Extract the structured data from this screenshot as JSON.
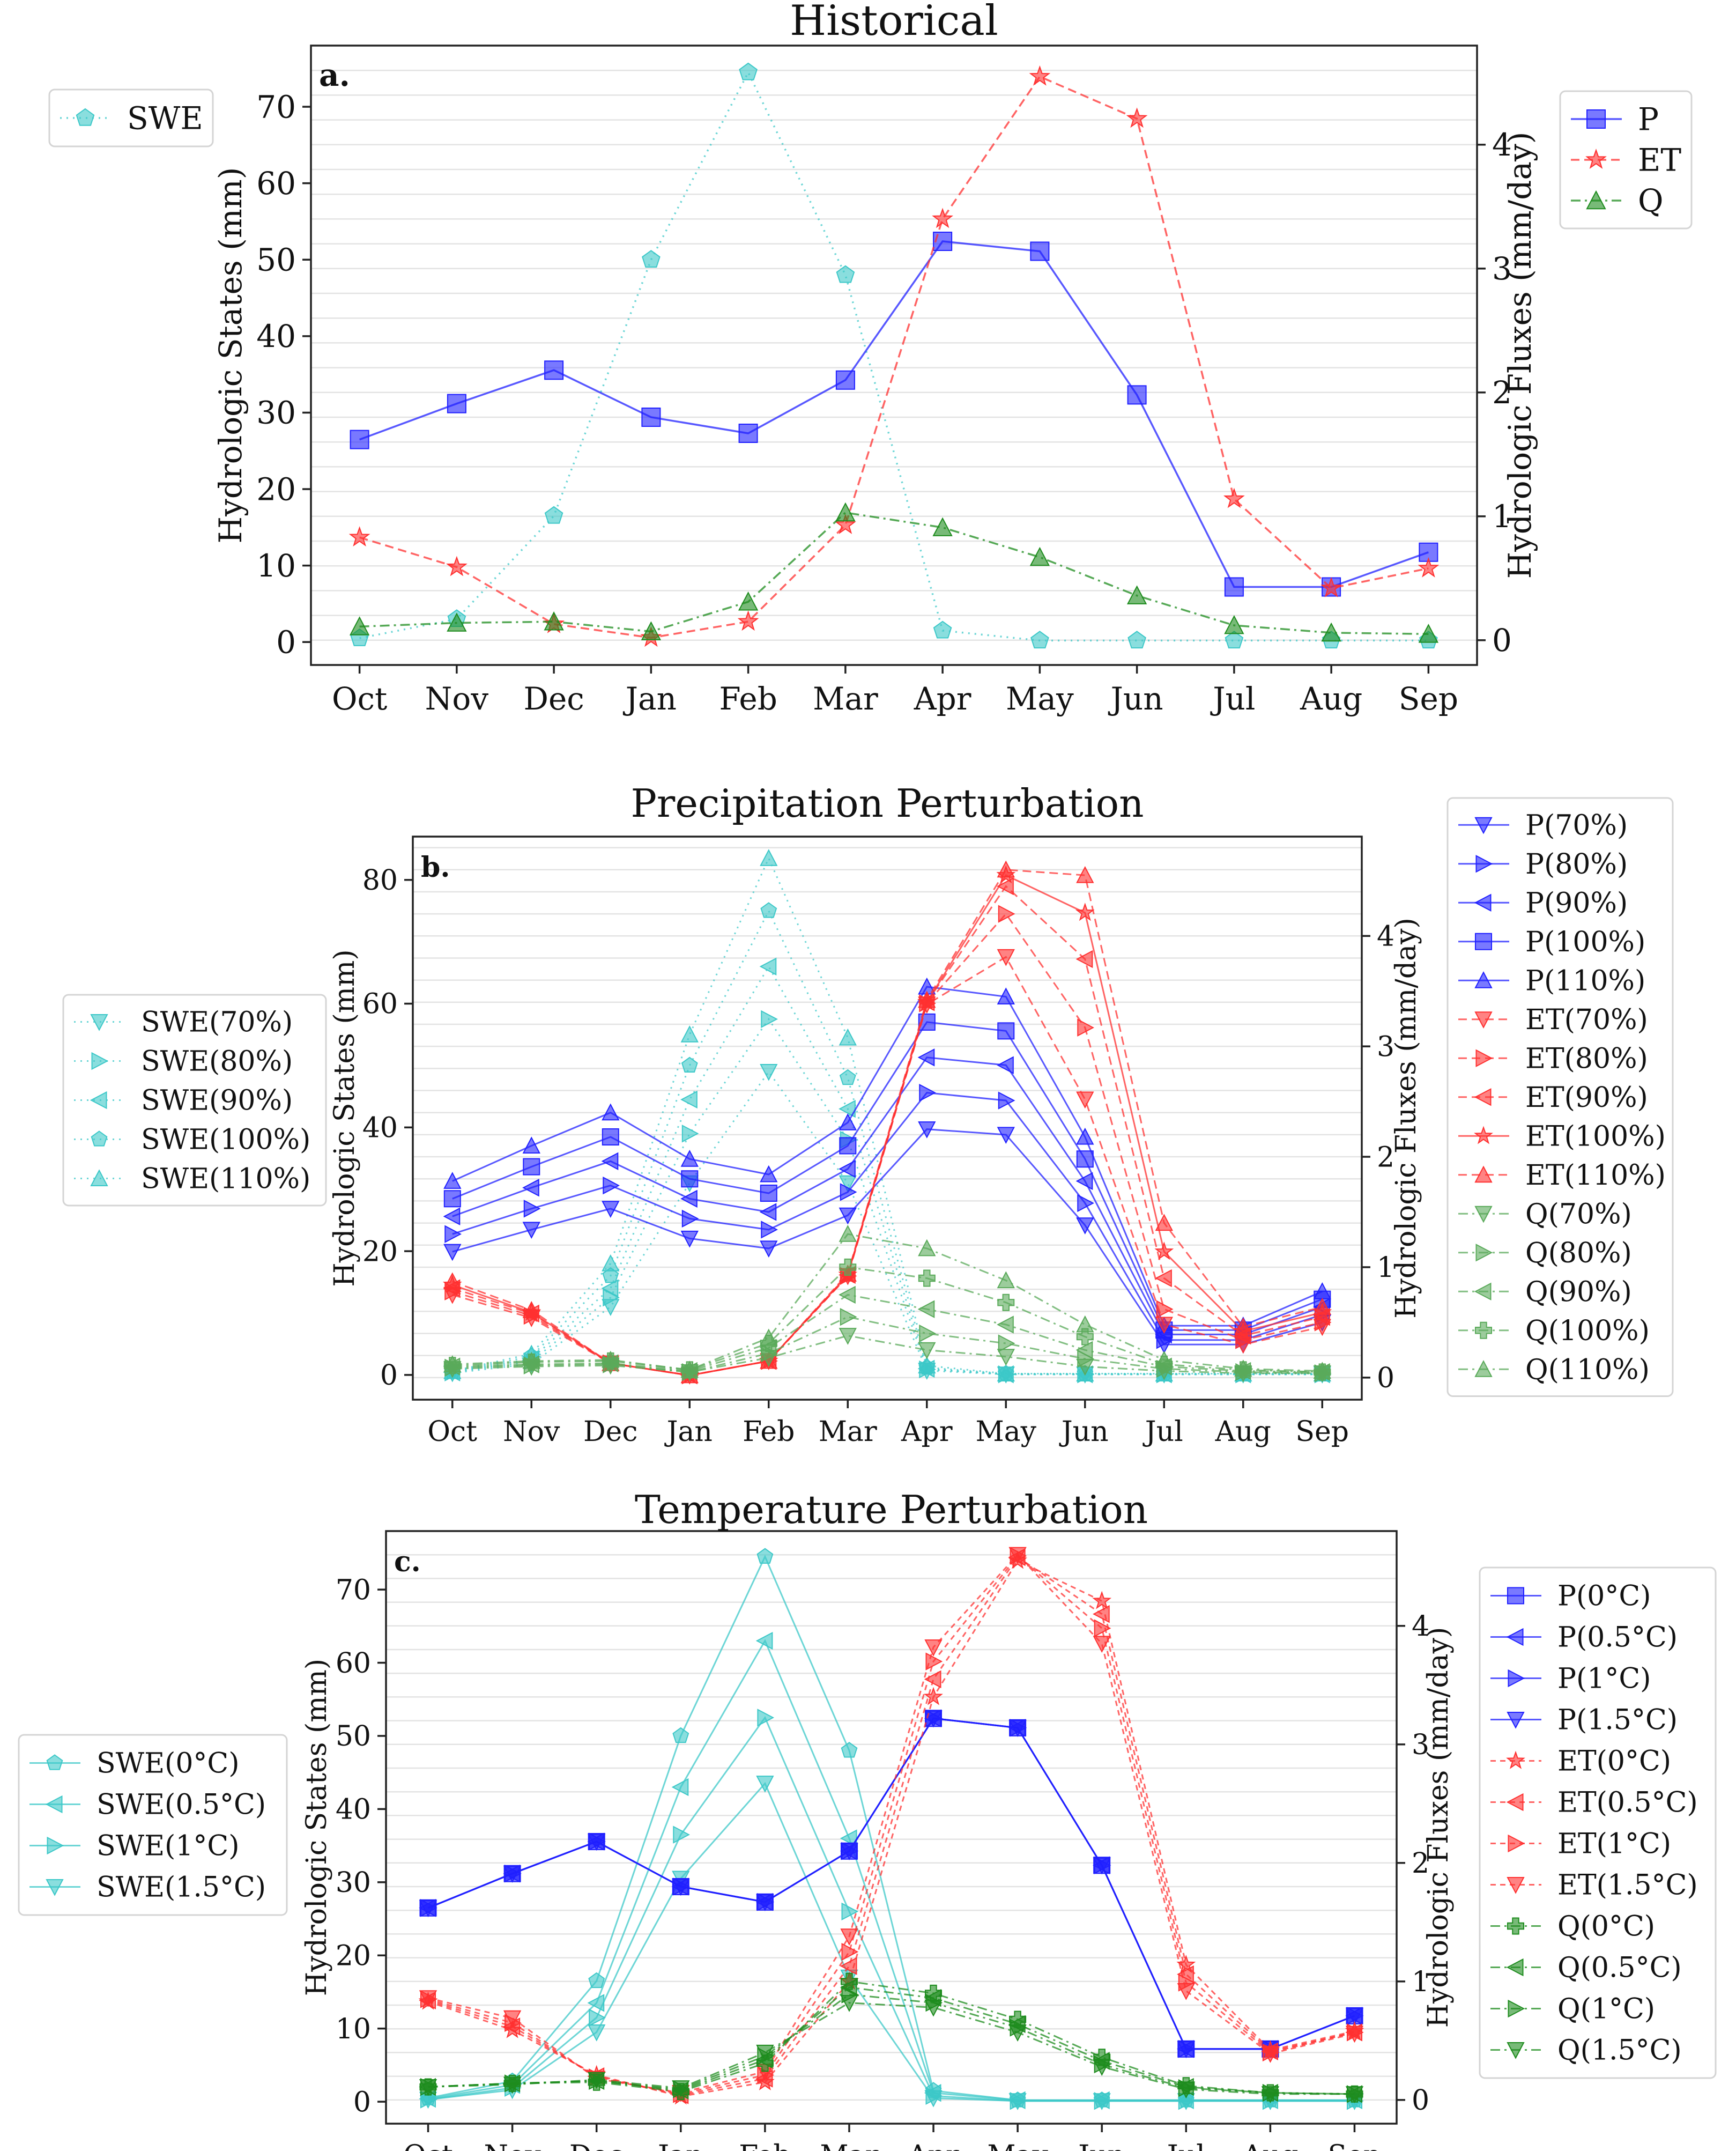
{
  "months": [
    "Oct",
    "Nov",
    "Dec",
    "Jan",
    "Feb",
    "Mar",
    "Apr",
    "May",
    "Jun",
    "Jul",
    "Aug",
    "Sep"
  ],
  "colors": {
    "swe": "#3cc8c8",
    "p": "#2020ff",
    "et": "#ff3030",
    "q": "#1e8c1e",
    "q_light": "#5aaa5a"
  },
  "chart_data": [
    {
      "type": "line",
      "panel": "a.",
      "title": "Historical",
      "ylabel_left": "Hydrologic States (mm)",
      "ylabel_right": "Hydrologic Fluxes (mm/day)",
      "ylim_left": [
        -3,
        78
      ],
      "ylim_right": [
        -0.2,
        4.8
      ],
      "yticks_left": [
        0,
        10,
        20,
        30,
        40,
        50,
        60,
        70
      ],
      "yticks_right": [
        0,
        1,
        2,
        3,
        4
      ],
      "grid": true,
      "legend_left": "outside-left",
      "legend_right": "outside-right",
      "series": [
        {
          "name": "SWE",
          "axis": "left",
          "color": "#3cc8c8",
          "dash": "3,9",
          "marker": "pentagon",
          "values": [
            0.5,
            3,
            16.5,
            50,
            74.5,
            48,
            1.5,
            0.2,
            0.2,
            0.2,
            0.2,
            0.2
          ]
        },
        {
          "name": "P",
          "axis": "right",
          "color": "#2020ff",
          "dash": "",
          "marker": "square",
          "values": [
            1.62,
            1.91,
            2.18,
            1.8,
            1.67,
            2.1,
            3.22,
            3.14,
            1.98,
            0.43,
            0.43,
            0.71
          ]
        },
        {
          "name": "ET",
          "axis": "right",
          "color": "#ff3030",
          "dash": "16,9",
          "marker": "star",
          "values": [
            0.83,
            0.59,
            0.13,
            0.02,
            0.15,
            0.93,
            3.4,
            4.55,
            4.21,
            1.14,
            0.42,
            0.58
          ]
        },
        {
          "name": "Q",
          "axis": "right",
          "color": "#1e8c1e",
          "dash": "18,8,4,8",
          "marker": "triangle-up",
          "values": [
            0.11,
            0.14,
            0.15,
            0.07,
            0.31,
            1.03,
            0.91,
            0.67,
            0.36,
            0.12,
            0.06,
            0.05
          ]
        }
      ]
    },
    {
      "type": "line",
      "panel": "b.",
      "title": "Precipitation Perturbation",
      "ylabel_left": "Hydrologic States (mm)",
      "ylabel_right": "Hydrologic Fluxes (mm/day)",
      "ylim_left": [
        -4,
        87
      ],
      "ylim_right": [
        -0.2,
        4.9
      ],
      "yticks_left": [
        0,
        20,
        40,
        60,
        80
      ],
      "yticks_right": [
        0,
        1,
        2,
        3,
        4
      ],
      "grid": true,
      "legend_left": "outside-left",
      "legend_right": "outside-right",
      "series": [
        {
          "name": "SWE(70%)",
          "axis": "left",
          "color": "#3cc8c8",
          "dash": "3,9",
          "marker": "triangle-down",
          "values": [
            0.3,
            1.8,
            11,
            31,
            49,
            31,
            0.7,
            0.1,
            0.1,
            0.1,
            0.1,
            0.1
          ]
        },
        {
          "name": "SWE(80%)",
          "axis": "left",
          "color": "#3cc8c8",
          "dash": "3,9",
          "marker": "triangle-right",
          "values": [
            0.4,
            2.2,
            12.5,
            39,
            57.5,
            38,
            0.9,
            0.1,
            0.1,
            0.1,
            0.1,
            0.1
          ]
        },
        {
          "name": "SWE(90%)",
          "axis": "left",
          "color": "#3cc8c8",
          "dash": "3,9",
          "marker": "triangle-left",
          "values": [
            0.4,
            2.6,
            14,
            44.5,
            66,
            43,
            1,
            0.1,
            0.1,
            0.1,
            0.1,
            0.1
          ]
        },
        {
          "name": "SWE(100%)",
          "axis": "left",
          "color": "#3cc8c8",
          "dash": "3,9",
          "marker": "pentagon",
          "values": [
            0.5,
            3,
            16,
            50,
            75,
            48,
            1.2,
            0.2,
            0.2,
            0.2,
            0.2,
            0.2
          ]
        },
        {
          "name": "SWE(110%)",
          "axis": "left",
          "color": "#3cc8c8",
          "dash": "3,9",
          "marker": "triangle-up",
          "values": [
            0.6,
            3.4,
            18,
            55,
            83.5,
            54.5,
            1.5,
            0.2,
            0.2,
            0.2,
            0.2,
            0.2
          ]
        },
        {
          "name": "P(70%)",
          "axis": "right",
          "color": "#2020ff",
          "dash": "",
          "marker": "triangle-down",
          "values": [
            1.14,
            1.34,
            1.53,
            1.26,
            1.17,
            1.47,
            2.25,
            2.2,
            1.38,
            0.3,
            0.3,
            0.5
          ]
        },
        {
          "name": "P(80%)",
          "axis": "right",
          "color": "#2020ff",
          "dash": "",
          "marker": "triangle-right",
          "values": [
            1.3,
            1.53,
            1.74,
            1.44,
            1.34,
            1.68,
            2.58,
            2.51,
            1.58,
            0.34,
            0.34,
            0.57
          ]
        },
        {
          "name": "P(90%)",
          "axis": "right",
          "color": "#2020ff",
          "dash": "",
          "marker": "triangle-left",
          "values": [
            1.46,
            1.72,
            1.96,
            1.62,
            1.5,
            1.89,
            2.9,
            2.83,
            1.78,
            0.39,
            0.39,
            0.64
          ]
        },
        {
          "name": "P(100%)",
          "axis": "right",
          "color": "#2020ff",
          "dash": "",
          "marker": "square",
          "values": [
            1.62,
            1.91,
            2.18,
            1.8,
            1.67,
            2.1,
            3.22,
            3.14,
            1.98,
            0.43,
            0.43,
            0.71
          ]
        },
        {
          "name": "P(110%)",
          "axis": "right",
          "color": "#2020ff",
          "dash": "",
          "marker": "triangle-up",
          "values": [
            1.78,
            2.1,
            2.4,
            1.98,
            1.84,
            2.31,
            3.54,
            3.45,
            2.18,
            0.47,
            0.47,
            0.78
          ]
        },
        {
          "name": "ET(70%)",
          "axis": "right",
          "color": "#ff3030",
          "dash": "16,9",
          "marker": "triangle-down",
          "values": [
            0.75,
            0.54,
            0.13,
            0.02,
            0.15,
            0.92,
            3.38,
            3.81,
            2.52,
            0.48,
            0.3,
            0.46
          ]
        },
        {
          "name": "ET(80%)",
          "axis": "right",
          "color": "#ff3030",
          "dash": "16,9",
          "marker": "triangle-right",
          "values": [
            0.78,
            0.56,
            0.13,
            0.02,
            0.15,
            0.92,
            3.39,
            4.2,
            3.17,
            0.62,
            0.34,
            0.5
          ]
        },
        {
          "name": "ET(90%)",
          "axis": "right",
          "color": "#ff3030",
          "dash": "16,9",
          "marker": "triangle-left",
          "values": [
            0.81,
            0.58,
            0.13,
            0.02,
            0.15,
            0.93,
            3.4,
            4.45,
            3.79,
            0.9,
            0.38,
            0.55
          ]
        },
        {
          "name": "ET(100%)",
          "axis": "right",
          "color": "#ff3030",
          "dash": "",
          "marker": "star",
          "values": [
            0.84,
            0.59,
            0.13,
            0.02,
            0.15,
            0.93,
            3.4,
            4.55,
            4.21,
            1.14,
            0.42,
            0.59
          ]
        },
        {
          "name": "ET(110%)",
          "axis": "right",
          "color": "#ff3030",
          "dash": "16,9",
          "marker": "triangle-up",
          "values": [
            0.87,
            0.61,
            0.13,
            0.02,
            0.15,
            0.94,
            3.42,
            4.6,
            4.55,
            1.4,
            0.46,
            0.64
          ]
        },
        {
          "name": "Q(70%)",
          "axis": "right",
          "color": "#5aaa5a",
          "dash": "18,8,4,8",
          "marker": "triangle-down",
          "values": [
            0.08,
            0.1,
            0.11,
            0.05,
            0.18,
            0.38,
            0.25,
            0.19,
            0.1,
            0.06,
            0.04,
            0.04
          ]
        },
        {
          "name": "Q(80%)",
          "axis": "right",
          "color": "#5aaa5a",
          "dash": "18,8,4,8",
          "marker": "triangle-right",
          "values": [
            0.09,
            0.11,
            0.12,
            0.05,
            0.22,
            0.55,
            0.4,
            0.31,
            0.17,
            0.08,
            0.05,
            0.04
          ]
        },
        {
          "name": "Q(90%)",
          "axis": "right",
          "color": "#5aaa5a",
          "dash": "18,8,4,8",
          "marker": "triangle-left",
          "values": [
            0.1,
            0.12,
            0.13,
            0.06,
            0.27,
            0.75,
            0.62,
            0.48,
            0.25,
            0.1,
            0.06,
            0.05
          ]
        },
        {
          "name": "Q(100%)",
          "axis": "right",
          "color": "#5aaa5a",
          "dash": "18,8,4,8",
          "marker": "plus",
          "values": [
            0.11,
            0.14,
            0.15,
            0.07,
            0.31,
            1.0,
            0.9,
            0.68,
            0.37,
            0.12,
            0.07,
            0.05
          ]
        },
        {
          "name": "Q(110%)",
          "axis": "right",
          "color": "#5aaa5a",
          "dash": "18,8,4,8",
          "marker": "triangle-up",
          "values": [
            0.12,
            0.15,
            0.16,
            0.07,
            0.36,
            1.3,
            1.17,
            0.88,
            0.48,
            0.16,
            0.08,
            0.06
          ]
        }
      ]
    },
    {
      "type": "line",
      "panel": "c.",
      "title": "Temperature Perturbation",
      "ylabel_left": "Hydrologic States (mm)",
      "ylabel_right": "Hydrologic Fluxes (mm/day)",
      "ylim_left": [
        -3,
        78
      ],
      "ylim_right": [
        -0.2,
        4.8
      ],
      "yticks_left": [
        0,
        10,
        20,
        30,
        40,
        50,
        60,
        70
      ],
      "yticks_right": [
        0,
        1,
        2,
        3,
        4
      ],
      "grid": true,
      "legend_left": "outside-left",
      "legend_right": "outside-right",
      "series": [
        {
          "name": "SWE(0°C)",
          "axis": "left",
          "color": "#3cc8c8",
          "dash": "",
          "marker": "pentagon",
          "values": [
            0.5,
            2.8,
            16.5,
            50,
            74.5,
            48,
            1.5,
            0.2,
            0.2,
            0.2,
            0.2,
            0.2
          ]
        },
        {
          "name": "SWE(0.5°C)",
          "axis": "left",
          "color": "#3cc8c8",
          "dash": "",
          "marker": "triangle-left",
          "values": [
            0.4,
            2.3,
            13.5,
            43,
            63,
            36,
            1.2,
            0.2,
            0.2,
            0.2,
            0.2,
            0.2
          ]
        },
        {
          "name": "SWE(1°C)",
          "axis": "left",
          "color": "#3cc8c8",
          "dash": "",
          "marker": "triangle-right",
          "values": [
            0.3,
            1.9,
            11.5,
            36.5,
            52.5,
            26,
            0.8,
            0.1,
            0.1,
            0.1,
            0.1,
            0.1
          ]
        },
        {
          "name": "SWE(1.5°C)",
          "axis": "left",
          "color": "#3cc8c8",
          "dash": "",
          "marker": "triangle-down",
          "values": [
            0.3,
            1.6,
            9.5,
            30.5,
            43.5,
            17,
            0.5,
            0.1,
            0.1,
            0.1,
            0.1,
            0.1
          ]
        },
        {
          "name": "P(0°C)",
          "axis": "right",
          "color": "#2020ff",
          "dash": "",
          "marker": "square",
          "values": [
            1.62,
            1.91,
            2.18,
            1.8,
            1.67,
            2.1,
            3.22,
            3.14,
            1.98,
            0.43,
            0.43,
            0.71
          ]
        },
        {
          "name": "P(0.5°C)",
          "axis": "right",
          "color": "#2020ff",
          "dash": "",
          "marker": "triangle-left",
          "values": [
            1.62,
            1.91,
            2.18,
            1.8,
            1.67,
            2.1,
            3.22,
            3.14,
            1.98,
            0.43,
            0.43,
            0.71
          ]
        },
        {
          "name": "P(1°C)",
          "axis": "right",
          "color": "#2020ff",
          "dash": "",
          "marker": "triangle-right",
          "values": [
            1.62,
            1.91,
            2.18,
            1.8,
            1.67,
            2.1,
            3.22,
            3.14,
            1.98,
            0.43,
            0.43,
            0.71
          ]
        },
        {
          "name": "P(1.5°C)",
          "axis": "right",
          "color": "#2020ff",
          "dash": "",
          "marker": "triangle-down",
          "values": [
            1.62,
            1.91,
            2.18,
            1.8,
            1.67,
            2.1,
            3.22,
            3.14,
            1.98,
            0.43,
            0.43,
            0.71
          ]
        },
        {
          "name": "ET(0°C)",
          "axis": "right",
          "color": "#ff3030",
          "dash": "10,8",
          "marker": "star",
          "values": [
            0.83,
            0.59,
            0.21,
            0.03,
            0.15,
            1.0,
            3.4,
            4.55,
            4.21,
            1.14,
            0.42,
            0.58
          ]
        },
        {
          "name": "ET(0.5°C)",
          "axis": "right",
          "color": "#ff3030",
          "dash": "10,8",
          "marker": "triangle-left",
          "values": [
            0.84,
            0.62,
            0.2,
            0.04,
            0.18,
            1.13,
            3.55,
            4.58,
            4.1,
            1.06,
            0.41,
            0.57
          ]
        },
        {
          "name": "ET(1°C)",
          "axis": "right",
          "color": "#ff3030",
          "dash": "10,8",
          "marker": "triangle-right",
          "values": [
            0.85,
            0.65,
            0.19,
            0.05,
            0.21,
            1.25,
            3.7,
            4.59,
            3.98,
            0.99,
            0.4,
            0.57
          ]
        },
        {
          "name": "ET(1.5°C)",
          "axis": "right",
          "color": "#ff3030",
          "dash": "10,8",
          "marker": "triangle-down",
          "values": [
            0.86,
            0.69,
            0.18,
            0.06,
            0.24,
            1.38,
            3.82,
            4.6,
            3.85,
            0.92,
            0.39,
            0.56
          ]
        },
        {
          "name": "Q(0°C)",
          "axis": "right",
          "color": "#1e8c1e",
          "dash": "18,8,4,8",
          "marker": "plus",
          "values": [
            0.11,
            0.14,
            0.15,
            0.07,
            0.31,
            1.0,
            0.9,
            0.68,
            0.36,
            0.12,
            0.06,
            0.05
          ]
        },
        {
          "name": "Q(0.5°C)",
          "axis": "right",
          "color": "#1e8c1e",
          "dash": "18,8,4,8",
          "marker": "triangle-left",
          "values": [
            0.11,
            0.14,
            0.16,
            0.08,
            0.34,
            0.95,
            0.86,
            0.64,
            0.33,
            0.11,
            0.06,
            0.05
          ]
        },
        {
          "name": "Q(1°C)",
          "axis": "right",
          "color": "#1e8c1e",
          "dash": "18,8,4,8",
          "marker": "triangle-right",
          "values": [
            0.11,
            0.14,
            0.16,
            0.09,
            0.37,
            0.89,
            0.82,
            0.61,
            0.3,
            0.1,
            0.06,
            0.05
          ]
        },
        {
          "name": "Q(1.5°C)",
          "axis": "right",
          "color": "#1e8c1e",
          "dash": "18,8,4,8",
          "marker": "triangle-down",
          "values": [
            0.11,
            0.13,
            0.17,
            0.1,
            0.4,
            0.82,
            0.78,
            0.57,
            0.28,
            0.09,
            0.05,
            0.05
          ]
        }
      ]
    }
  ]
}
